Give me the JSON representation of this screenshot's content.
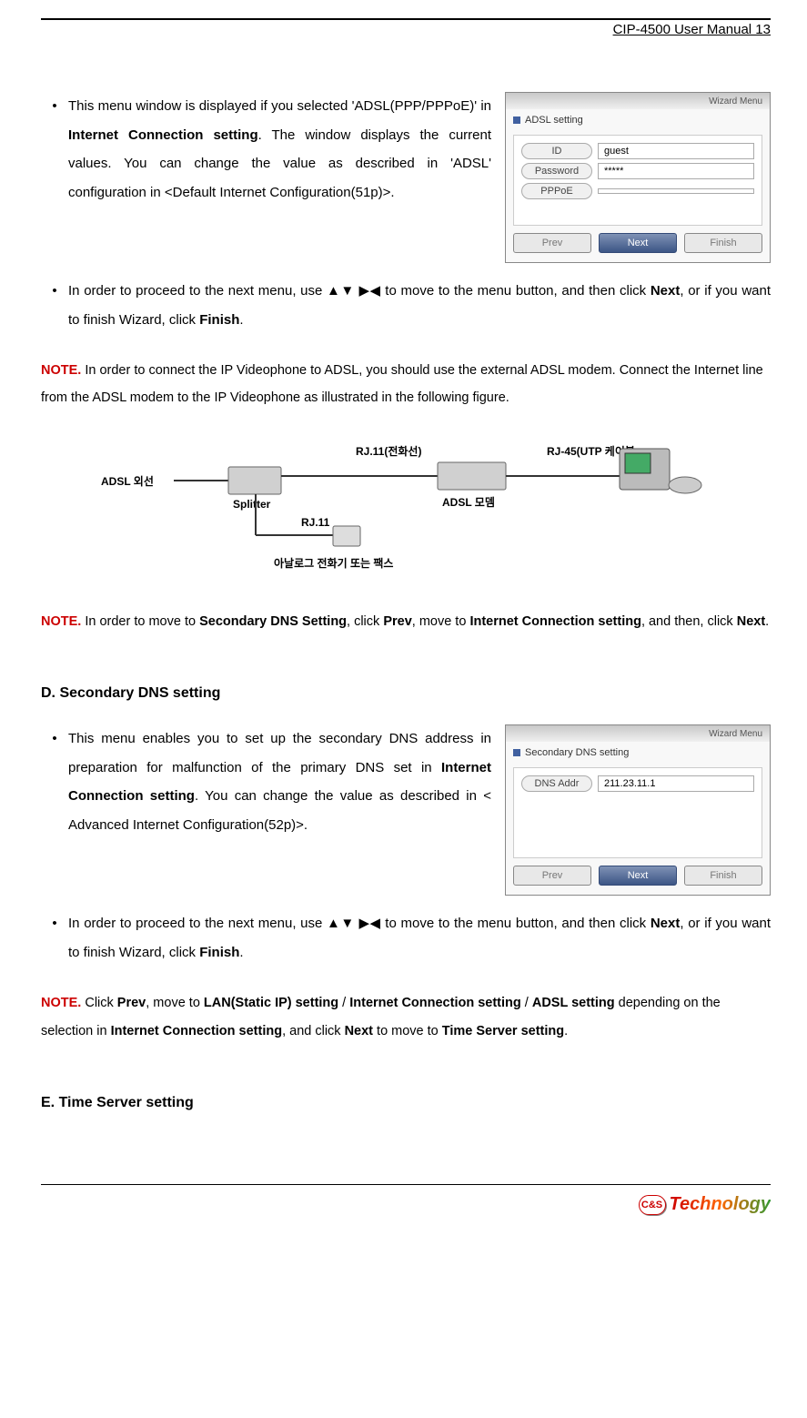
{
  "header": {
    "title": "CIP-4500 User Manual 13"
  },
  "bullets1": [
    {
      "text_parts": [
        {
          "t": "This menu window is displayed if you selected 'ADSL(PPP/PPPoE)' in "
        },
        {
          "t": "Internet Connection setting",
          "b": true
        },
        {
          "t": ". The window displays the current values. You can change the value as described in 'ADSL' configuration in <Default Internet Configuration(51p)>."
        }
      ]
    },
    {
      "text_parts": [
        {
          "t": "In order to proceed to the next menu, use ▲▼ ▶◀ to move to the menu button, and then click "
        },
        {
          "t": "Next",
          "b": true
        },
        {
          "t": ", or if you want to finish Wizard, click "
        },
        {
          "t": "Finish",
          "b": true
        },
        {
          "t": "."
        }
      ]
    }
  ],
  "wizard1": {
    "gradient_label": "Wizard Menu",
    "title": "ADSL setting",
    "rows": [
      {
        "label": "ID",
        "value": "guest"
      },
      {
        "label": "Password",
        "value": "*****"
      },
      {
        "label": "PPPoE",
        "value": ""
      }
    ],
    "buttons": {
      "prev": "Prev",
      "next": "Next",
      "finish": "Finish"
    }
  },
  "note1": {
    "label": "NOTE.",
    "text": " In order to connect the IP Videophone to ADSL, you should use the external ADSL modem. Connect the Internet line from the ADSL modem to the IP Videophone as illustrated in the following figure."
  },
  "diagram": {
    "adsl_line": "ADSL 외선",
    "splitter": "Splitter",
    "rj11_top": "RJ.11(전화선)",
    "rj11_bottom": "RJ.11",
    "modem": "ADSL 모뎀",
    "rj45": "RJ-45(UTP 케이블",
    "analog": "아날로그 전화기 또는 팩스"
  },
  "note2": {
    "label": "NOTE.",
    "parts": [
      {
        "t": " In order to move to "
      },
      {
        "t": "Secondary DNS Setting",
        "b": true
      },
      {
        "t": ", click "
      },
      {
        "t": "Prev",
        "b": true
      },
      {
        "t": ", move to "
      },
      {
        "t": "Internet Connection setting",
        "b": true
      },
      {
        "t": ", and then, click "
      },
      {
        "t": "Next",
        "b": true
      },
      {
        "t": "."
      }
    ]
  },
  "headingD": "D. Secondary DNS setting",
  "bullets2": [
    {
      "text_parts": [
        {
          "t": "This menu enables you to set up the secondary DNS address in preparation for malfunction of the primary DNS set in "
        },
        {
          "t": "Internet Connection setting",
          "b": true
        },
        {
          "t": ". You can change the value as described in < Advanced Internet Configuration(52p)>."
        }
      ]
    },
    {
      "text_parts": [
        {
          "t": "In order to proceed to the next menu, use ▲▼ ▶◀ to move to the menu button, and then click "
        },
        {
          "t": "Next",
          "b": true
        },
        {
          "t": ", or if you want to finish Wizard, click "
        },
        {
          "t": "Finish",
          "b": true
        },
        {
          "t": "."
        }
      ]
    }
  ],
  "wizard2": {
    "gradient_label": "Wizard Menu",
    "title": "Secondary DNS setting",
    "rows": [
      {
        "label": "DNS Addr",
        "value": "211.23.11.1"
      }
    ],
    "buttons": {
      "prev": "Prev",
      "next": "Next",
      "finish": "Finish"
    }
  },
  "note3": {
    "label": "NOTE.",
    "parts": [
      {
        "t": " Click "
      },
      {
        "t": "Prev",
        "b": true
      },
      {
        "t": ", move to "
      },
      {
        "t": "LAN(Static IP) setting",
        "b": true
      },
      {
        "t": " / "
      },
      {
        "t": "Internet Connection setting",
        "b": true
      },
      {
        "t": " / "
      },
      {
        "t": "ADSL setting",
        "b": true
      },
      {
        "t": " depending on the selection in "
      },
      {
        "t": "Internet Connection setting",
        "b": true
      },
      {
        "t": ", and click "
      },
      {
        "t": "Next",
        "b": true
      },
      {
        "t": " to move to "
      },
      {
        "t": "Time Server setting",
        "b": true
      },
      {
        "t": "."
      }
    ]
  },
  "headingE": "E. Time Server setting",
  "footer": {
    "badge": "C&S",
    "brand": "Technology"
  },
  "colors": {
    "note_red": "#cc0000",
    "text": "#000000",
    "bg": "#ffffff"
  }
}
